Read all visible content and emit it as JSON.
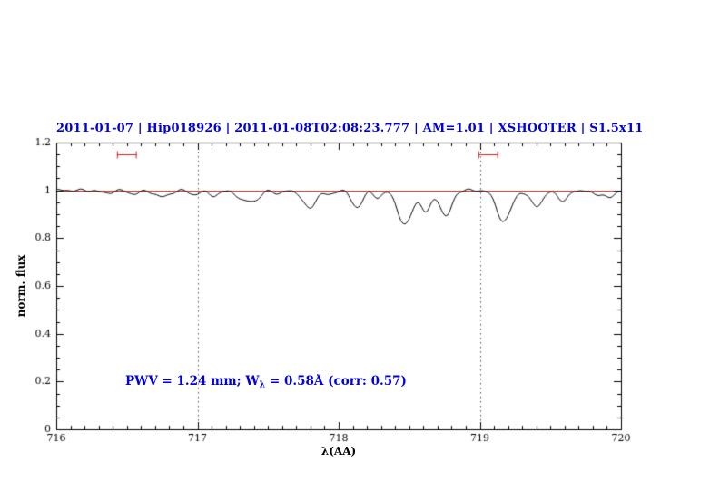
{
  "title": {
    "text": "2011-01-07 | Hip018926 | 2011-01-08T02:08:23.777 | AM=1.01 | XSHOOTER | S1.5x11",
    "color": "#0000dd"
  },
  "annotation": {
    "prefix": "PWV = 1.24 mm; W",
    "sub": "λ",
    "suffix": " = 0.58Å (corr: 0.57)",
    "color": "#0000dd"
  },
  "chart_data": {
    "type": "line",
    "title": "2011-01-07 | Hip018926 | 2011-01-08T02:08:23.777 | AM=1.01 | XSHOOTER | S1.5x11",
    "xlabel": "λ(AA)",
    "ylabel": "norm. flux",
    "xlim": [
      716,
      720
    ],
    "ylim": [
      0,
      1.2
    ],
    "x_ticks": [
      716,
      717,
      718,
      719,
      720
    ],
    "x_tick_labels": [
      "716",
      "717",
      "718",
      "719",
      "720"
    ],
    "x_minor_step": 0.1,
    "y_ticks": [
      0,
      0.2,
      0.4,
      0.6,
      0.8,
      1,
      1.2
    ],
    "y_tick_labels": [
      "0",
      "0.2",
      "0.4",
      "0.6",
      "0.8",
      "1",
      "1.2"
    ],
    "y_minor_step": 0.05,
    "grid": false,
    "line_color": "#000000",
    "continuum_line": {
      "y": 1.0,
      "color": "#cc2222"
    },
    "dotted_lines_x": [
      717,
      719
    ],
    "dotted_line_color": "#555555",
    "band_markers": [
      {
        "x1": 716.43,
        "x2": 716.57,
        "y": 1.15
      },
      {
        "x1": 718.99,
        "x2": 719.13,
        "y": 1.15
      }
    ],
    "band_marker_color": "#cc2222",
    "spectrum_model": {
      "model": "gaussian_absorption",
      "continuum": 1.0,
      "sample_step": 0.01,
      "ripple": {
        "amps": [
          0.0035,
          0.0022
        ],
        "freqs": [
          6.9,
          11.3
        ],
        "phases": [
          0.5,
          1.7
        ]
      },
      "absorption_lines": [
        {
          "center": 716.35,
          "depth": 0.012,
          "sigma": 0.04
        },
        {
          "center": 716.55,
          "depth": 0.015,
          "sigma": 0.04
        },
        {
          "center": 716.75,
          "depth": 0.028,
          "sigma": 0.05
        },
        {
          "center": 716.98,
          "depth": 0.018,
          "sigma": 0.035
        },
        {
          "center": 717.12,
          "depth": 0.022,
          "sigma": 0.04
        },
        {
          "center": 717.33,
          "depth": 0.045,
          "sigma": 0.045
        },
        {
          "center": 717.42,
          "depth": 0.035,
          "sigma": 0.035
        },
        {
          "center": 717.58,
          "depth": 0.015,
          "sigma": 0.03
        },
        {
          "center": 717.79,
          "depth": 0.075,
          "sigma": 0.045
        },
        {
          "center": 717.93,
          "depth": 0.02,
          "sigma": 0.03
        },
        {
          "center": 718.13,
          "depth": 0.07,
          "sigma": 0.04
        },
        {
          "center": 718.28,
          "depth": 0.03,
          "sigma": 0.03
        },
        {
          "center": 718.47,
          "depth": 0.145,
          "sigma": 0.05
        },
        {
          "center": 718.62,
          "depth": 0.09,
          "sigma": 0.035
        },
        {
          "center": 718.76,
          "depth": 0.11,
          "sigma": 0.04
        },
        {
          "center": 719.17,
          "depth": 0.13,
          "sigma": 0.05
        },
        {
          "center": 719.4,
          "depth": 0.065,
          "sigma": 0.045
        },
        {
          "center": 719.59,
          "depth": 0.042,
          "sigma": 0.04
        },
        {
          "center": 719.82,
          "depth": 0.02,
          "sigma": 0.03
        },
        {
          "center": 719.92,
          "depth": 0.032,
          "sigma": 0.035
        }
      ]
    }
  }
}
